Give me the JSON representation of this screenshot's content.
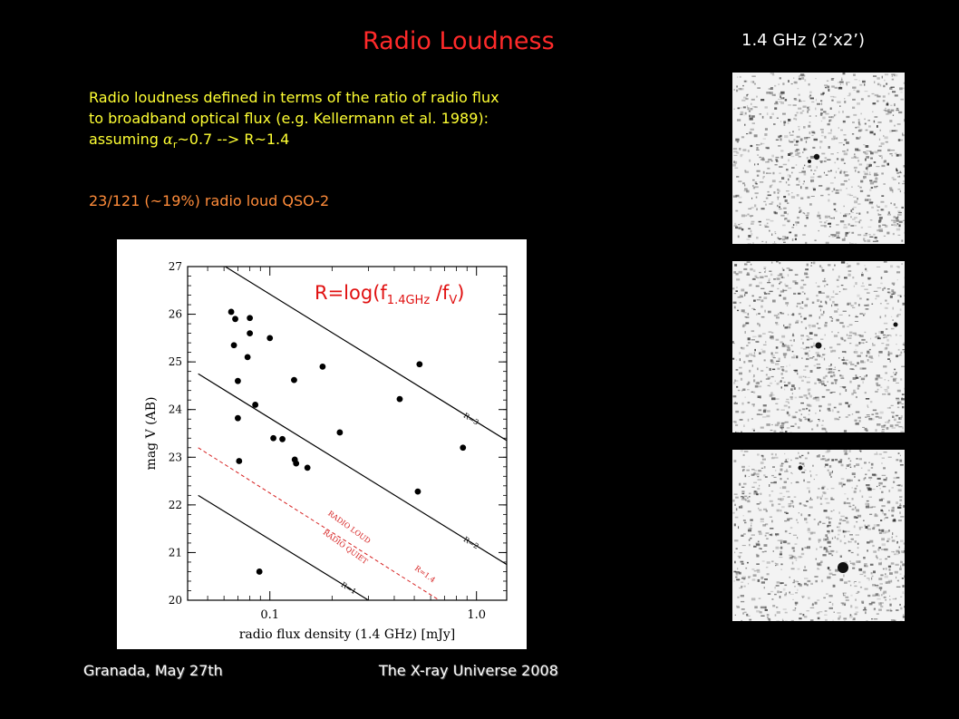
{
  "slide": {
    "title": "Radio Loudness",
    "freq_label": "1.4 GHz (2’x2’)",
    "desc_line1": "Radio loudness defined in terms of the ratio of radio flux",
    "desc_line2": "to broadband optical flux (e.g. Kellermann et al. 1989):",
    "desc_line3_prefix": "assuming ",
    "desc_alpha": "α",
    "desc_alpha_sub": "r",
    "desc_line3_suffix": "~0.7 --> R~1.4",
    "count_text": "23/121 (~19%) radio loud QSO-2",
    "footer_left": "Granada, May 27th",
    "footer_right": "The X-ray Universe 2008",
    "title_color": "#ff2a2a",
    "text_color": "#ffff33",
    "count_color": "#ff8c3a"
  },
  "chart_data": {
    "type": "scatter",
    "xlabel": "radio flux density (1.4 GHz) [mJy]",
    "ylabel": "mag V (AB)",
    "xscale": "log",
    "xlim": [
      0.04,
      1.4
    ],
    "ylim": [
      20,
      27
    ],
    "y_inverted": true,
    "x_ticks": [
      0.1,
      1.0
    ],
    "x_tick_labels": [
      "0.1",
      "1.0"
    ],
    "y_ticks": [
      20,
      21,
      22,
      23,
      24,
      25,
      26,
      27
    ],
    "formula": {
      "prefix": "R=log(f",
      "sub1": "1.4GHz",
      "mid": " /f",
      "sub2": "V",
      "suffix": ")"
    },
    "region_labels": [
      "RADIO LOUD",
      "RADIO QUIET"
    ],
    "lines": [
      {
        "label": "R=3",
        "style": "solid",
        "color": "#000000",
        "points": [
          [
            0.045,
            27.35
          ],
          [
            1.4,
            23.35
          ]
        ]
      },
      {
        "label": "R=2",
        "style": "solid",
        "color": "#000000",
        "points": [
          [
            0.045,
            24.75
          ],
          [
            1.4,
            20.75
          ]
        ]
      },
      {
        "label": "R=1.4",
        "style": "dashed",
        "color": "#d62020",
        "points": [
          [
            0.045,
            23.2
          ],
          [
            0.66,
            20.0
          ]
        ]
      },
      {
        "label": "R=1",
        "style": "solid",
        "color": "#000000",
        "points": [
          [
            0.045,
            22.2
          ],
          [
            0.3,
            20.0
          ]
        ]
      }
    ],
    "points": [
      {
        "x": 0.065,
        "y": 26.05
      },
      {
        "x": 0.068,
        "y": 25.9
      },
      {
        "x": 0.08,
        "y": 25.92
      },
      {
        "x": 0.08,
        "y": 25.6
      },
      {
        "x": 0.067,
        "y": 25.35
      },
      {
        "x": 0.1,
        "y": 25.5
      },
      {
        "x": 0.078,
        "y": 25.1
      },
      {
        "x": 0.085,
        "y": 24.1
      },
      {
        "x": 0.07,
        "y": 24.6
      },
      {
        "x": 0.07,
        "y": 23.82
      },
      {
        "x": 0.131,
        "y": 24.62
      },
      {
        "x": 0.18,
        "y": 24.9
      },
      {
        "x": 0.104,
        "y": 23.4
      },
      {
        "x": 0.115,
        "y": 23.38
      },
      {
        "x": 0.132,
        "y": 22.95
      },
      {
        "x": 0.134,
        "y": 22.87
      },
      {
        "x": 0.152,
        "y": 22.78
      },
      {
        "x": 0.218,
        "y": 23.52
      },
      {
        "x": 0.425,
        "y": 24.22
      },
      {
        "x": 0.53,
        "y": 24.95
      },
      {
        "x": 0.52,
        "y": 22.28
      },
      {
        "x": 0.86,
        "y": 23.2
      },
      {
        "x": 0.071,
        "y": 22.92
      },
      {
        "x": 0.089,
        "y": 20.6
      }
    ]
  }
}
